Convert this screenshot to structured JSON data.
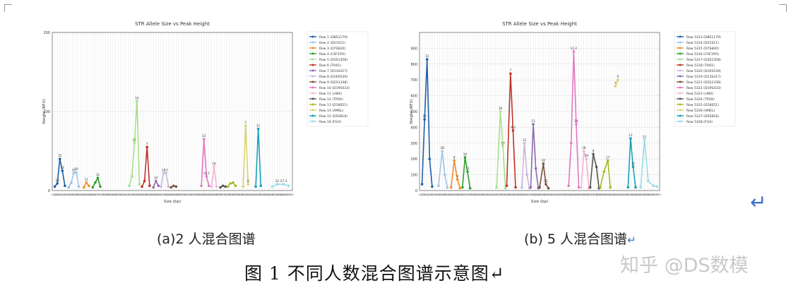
{
  "chart_data": [
    {
      "type": "line",
      "title": "STR Allele Size vs Peak Height",
      "xlabel": "Size (bp)",
      "ylabel": "Height (RFU)",
      "ylim": [
        0,
        200
      ],
      "xlim": [
        100,
        480
      ],
      "yticks": [
        0,
        100,
        200
      ],
      "grid": true,
      "legend_position": "right",
      "series": [
        {
          "name": "Row 1 (D8S1179)",
          "color": "#1f5fa8",
          "points": [
            [
              104,
              5
            ],
            [
              108,
              9
            ],
            [
              112,
              40
            ],
            [
              116,
              25
            ],
            [
              120,
              6
            ]
          ],
          "labels": [
            "15",
            "14",
            "13"
          ]
        },
        {
          "name": "Row 2 (D21S11)",
          "color": "#9ec5e8",
          "points": [
            [
              126,
              4
            ],
            [
              130,
              10
            ],
            [
              134,
              22
            ],
            [
              138,
              23
            ],
            [
              142,
              5
            ]
          ],
          "labels": [
            "30",
            "31"
          ]
        },
        {
          "name": "Row 3 (D7S820)",
          "color": "#f28e2b",
          "points": [
            [
              150,
              4
            ],
            [
              154,
              10
            ],
            [
              158,
              6
            ]
          ],
          "labels": [
            "11"
          ]
        },
        {
          "name": "Row 4 (CSF1PO)",
          "color": "#2ca02c",
          "points": [
            [
              164,
              4
            ],
            [
              168,
              10
            ],
            [
              172,
              16
            ],
            [
              176,
              5
            ]
          ],
          "labels": [
            "12"
          ]
        },
        {
          "name": "Row 5 (D3S1358)",
          "color": "#a6e08a",
          "points": [
            [
              222,
              6
            ],
            [
              226,
              18
            ],
            [
              230,
              60
            ],
            [
              234,
              113
            ],
            [
              238,
              8
            ]
          ],
          "labels": [
            "16",
            "17"
          ]
        },
        {
          "name": "Row 6 (TH01)",
          "color": "#c03228",
          "points": [
            [
              242,
              5
            ],
            [
              246,
              12
            ],
            [
              250,
              55
            ],
            [
              254,
              6
            ]
          ],
          "labels": [
            "7"
          ]
        },
        {
          "name": "Row 7 (D13S317)",
          "color": "#8c6bb1",
          "points": [
            [
              260,
              4
            ],
            [
              264,
              12
            ],
            [
              268,
              6
            ]
          ],
          "labels": [
            "10"
          ]
        },
        {
          "name": "Row 8 (D16S539)",
          "color": "#c9b8dc",
          "points": [
            [
              272,
              5
            ],
            [
              276,
              22
            ],
            [
              280,
              22
            ],
            [
              284,
              5
            ]
          ],
          "labels": [
            "12",
            "13"
          ]
        },
        {
          "name": "Row 9 (D2S1338)",
          "color": "#7b4f3a",
          "points": [
            [
              288,
              4
            ],
            [
              292,
              6
            ],
            [
              296,
              5
            ]
          ],
          "labels": []
        },
        {
          "name": "Row 10 (D19S433)",
          "color": "#e377c2",
          "points": [
            [
              336,
              6
            ],
            [
              340,
              65
            ],
            [
              344,
              18
            ],
            [
              348,
              6
            ]
          ],
          "labels": [
            "13",
            "14.2"
          ]
        },
        {
          "name": "Row 11 (vWA)",
          "color": "#f2b6d2",
          "points": [
            [
              352,
              5
            ],
            [
              356,
              30
            ],
            [
              360,
              5
            ]
          ],
          "labels": [
            "18"
          ]
        },
        {
          "name": "Row 12 (TPOX)",
          "color": "#555555",
          "points": [
            [
              366,
              4
            ],
            [
              370,
              6
            ],
            [
              374,
              5
            ]
          ],
          "labels": []
        },
        {
          "name": "Row 13 (D18S51)",
          "color": "#a8b820",
          "points": [
            [
              378,
              5
            ],
            [
              382,
              9
            ],
            [
              386,
              10
            ],
            [
              390,
              6
            ]
          ],
          "labels": []
        },
        {
          "name": "Row 14 (AMEL)",
          "color": "#d9d36a",
          "points": [
            [
              402,
              5
            ],
            [
              406,
              82
            ],
            [
              410,
              8
            ]
          ],
          "labels": [
            "Y",
            "X"
          ]
        },
        {
          "name": "Row 15 (D5S818)",
          "color": "#17a2b8",
          "points": [
            [
              422,
              5
            ],
            [
              426,
              78
            ],
            [
              430,
              6
            ]
          ],
          "labels": [
            "11"
          ]
        },
        {
          "name": "Row 16 (FGA)",
          "color": "#9adbe8",
          "points": [
            [
              448,
              5
            ],
            [
              456,
              8
            ],
            [
              466,
              8
            ],
            [
              474,
              6
            ]
          ],
          "labels": [
            "22",
            "27.3"
          ]
        }
      ]
    },
    {
      "type": "line",
      "title": "STR Allele Size vs Peak Height",
      "xlabel": "Size (bp)",
      "ylabel": "Height (RFU)",
      "ylim": [
        0,
        1000
      ],
      "xlim": [
        100,
        480
      ],
      "yticks": [
        0,
        100,
        200,
        300,
        400,
        500,
        600,
        700,
        800,
        900
      ],
      "grid": true,
      "legend_position": "right",
      "series": [
        {
          "name": "Row 5313 (D8S1179)",
          "color": "#1f5fa8",
          "points": [
            [
              104,
              40
            ],
            [
              108,
              450
            ],
            [
              112,
              830
            ],
            [
              116,
              200
            ],
            [
              120,
              25
            ]
          ],
          "labels": [
            "13",
            "14"
          ]
        },
        {
          "name": "Row 5314 (D21S11)",
          "color": "#9ec5e8",
          "points": [
            [
              130,
              30
            ],
            [
              136,
              250
            ],
            [
              140,
              100
            ],
            [
              144,
              20
            ]
          ],
          "labels": [
            "28"
          ]
        },
        {
          "name": "Row 5315 (D7S820)",
          "color": "#f28e2b",
          "points": [
            [
              150,
              20
            ],
            [
              155,
              190
            ],
            [
              160,
              70
            ],
            [
              164,
              15
            ]
          ],
          "labels": [
            "8",
            "9"
          ]
        },
        {
          "name": "Row 5316 (CSF1PO)",
          "color": "#2ca02c",
          "points": [
            [
              168,
              20
            ],
            [
              172,
              210
            ],
            [
              176,
              120
            ],
            [
              180,
              15
            ]
          ],
          "labels": [
            "10",
            "11"
          ]
        },
        {
          "name": "Row 5317 (D3S1358)",
          "color": "#a6e08a",
          "points": [
            [
              222,
              20
            ],
            [
              228,
              500
            ],
            [
              232,
              280
            ],
            [
              236,
              15
            ]
          ],
          "labels": [
            "16",
            "17"
          ]
        },
        {
          "name": "Row 5318 (TH01)",
          "color": "#c03228",
          "points": [
            [
              238,
              30
            ],
            [
              244,
              740
            ],
            [
              248,
              380
            ],
            [
              252,
              20
            ]
          ],
          "labels": [
            "7",
            "9.3"
          ]
        },
        {
          "name": "Row 5320 (D16S539)",
          "color": "#c9b8dc",
          "points": [
            [
              262,
              20
            ],
            [
              266,
              300
            ],
            [
              270,
              100
            ],
            [
              274,
              15
            ]
          ],
          "labels": [
            "12"
          ]
        },
        {
          "name": "Row 5319 (D13S317)",
          "color": "#8c6bb1",
          "points": [
            [
              276,
              20
            ],
            [
              280,
              420
            ],
            [
              284,
              140
            ],
            [
              288,
              15
            ]
          ],
          "labels": [
            "11"
          ]
        },
        {
          "name": "Row 5321 (D2S1338)",
          "color": "#7b4f3a",
          "points": [
            [
              290,
              20
            ],
            [
              296,
              170
            ],
            [
              300,
              40
            ],
            [
              304,
              15
            ]
          ],
          "labels": [
            "20",
            "25"
          ]
        },
        {
          "name": "Row 5322 (D19S433)",
          "color": "#e377c2",
          "points": [
            [
              336,
              30
            ],
            [
              340,
              300
            ],
            [
              344,
              880
            ],
            [
              348,
              420
            ],
            [
              352,
              20
            ]
          ],
          "labels": [
            "12.2",
            "14"
          ]
        },
        {
          "name": "Row 5323 (vWA)",
          "color": "#f2b6d2",
          "points": [
            [
              356,
              20
            ],
            [
              360,
              250
            ],
            [
              364,
              200
            ],
            [
              368,
              15
            ]
          ],
          "labels": [
            "18",
            "19"
          ]
        },
        {
          "name": "Row 5324 (TPOX)",
          "color": "#555555",
          "points": [
            [
              370,
              20
            ],
            [
              375,
              230
            ],
            [
              380,
              150
            ],
            [
              384,
              15
            ]
          ],
          "labels": [
            "8"
          ]
        },
        {
          "name": "Row 5325 (D18S51)",
          "color": "#a8b820",
          "points": [
            [
              386,
              20
            ],
            [
              392,
              120
            ],
            [
              398,
              190
            ],
            [
              402,
              20
            ]
          ],
          "labels": [
            "17"
          ]
        },
        {
          "name": "Row 5326 (AMEL)",
          "color": "#d9d36a",
          "points": [
            [
              410,
              660
            ],
            [
              414,
              700
            ]
          ],
          "labels": [
            "X",
            "Y"
          ]
        },
        {
          "name": "Row 5327 (D5S818)",
          "color": "#17a2b8",
          "points": [
            [
              430,
              20
            ],
            [
              434,
              330
            ],
            [
              438,
              150
            ],
            [
              442,
              20
            ]
          ],
          "labels": [
            "11",
            "12"
          ]
        },
        {
          "name": "Row 5328 (FGA)",
          "color": "#9adbe8",
          "points": [
            [
              450,
              20
            ],
            [
              456,
              320
            ],
            [
              462,
              60
            ],
            [
              470,
              30
            ],
            [
              476,
              25
            ]
          ],
          "labels": [
            "22"
          ]
        }
      ]
    }
  ],
  "captions": {
    "a": "(a)2 人混合图谱",
    "b": "(b)  5 人混合图谱",
    "pilcrow": "↵"
  },
  "figure_title": "图 1   不同人数混合图谱示意图↵",
  "watermark": "知乎 @DS数模",
  "return_icon": "↵"
}
